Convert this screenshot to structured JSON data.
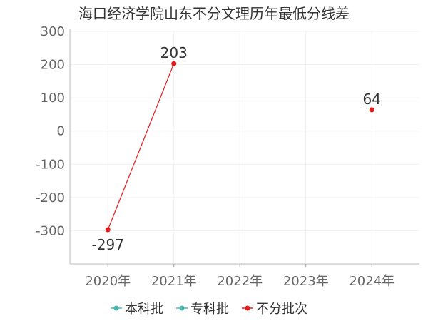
{
  "chart_data": {
    "type": "line",
    "title": "海口经济学院山东不分文理历年最低分线差",
    "xlabel": "",
    "ylabel": "",
    "categories": [
      "2020年",
      "2021年",
      "2022年",
      "2023年",
      "2024年"
    ],
    "ylim": [
      -400,
      300
    ],
    "yticks": [
      300,
      200,
      100,
      0,
      -100,
      -200,
      -300
    ],
    "yticklabels": [
      "300",
      "200",
      "100",
      "0",
      "-100",
      "-200",
      "-300"
    ],
    "grid": true,
    "legend_position": "bottom",
    "series": [
      {
        "name": "本科批",
        "color": "#4db6ac",
        "values": [
          null,
          null,
          null,
          null,
          null
        ],
        "labels": []
      },
      {
        "name": "专科批",
        "color": "#4db6ac",
        "values": [
          null,
          null,
          null,
          null,
          null
        ],
        "labels": []
      },
      {
        "name": "不分批次",
        "color": "#e31a1c",
        "values": [
          -297,
          203,
          null,
          null,
          64
        ],
        "labels": [
          "-297",
          "203",
          "",
          "",
          "64"
        ]
      }
    ]
  }
}
